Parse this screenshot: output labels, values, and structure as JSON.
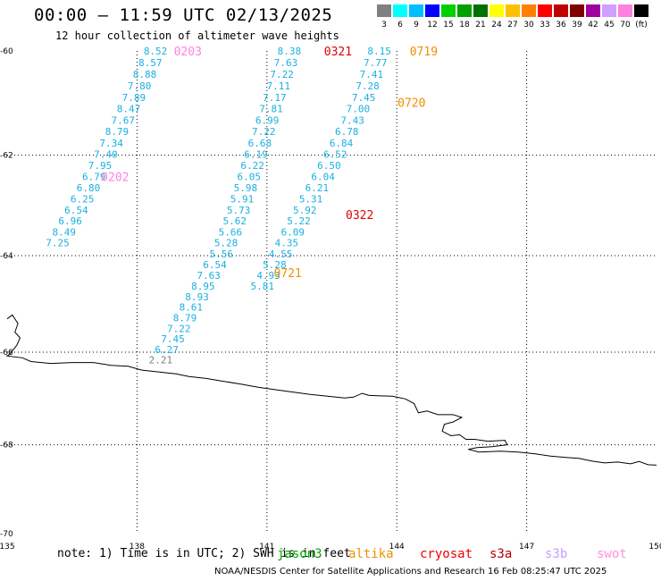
{
  "title": "00:00 — 11:59 UTC 02/13/2025",
  "subtitle": "12 hour collection of altimeter wave heights",
  "colorbar": {
    "colors": [
      "#808080",
      "#00ffff",
      "#00bfff",
      "#0000ff",
      "#00d000",
      "#00a000",
      "#007000",
      "#ffff00",
      "#ffc000",
      "#ff8000",
      "#ff0000",
      "#c00000",
      "#800000",
      "#a000a0",
      "#d0a0ff",
      "#ff80e0",
      "#000000"
    ],
    "labels": [
      "3",
      "6",
      "9",
      "12",
      "15",
      "18",
      "21",
      "24",
      "27",
      "30",
      "33",
      "36",
      "39",
      "42",
      "45",
      "70",
      "(ft)"
    ]
  },
  "chart_data": {
    "type": "scatter",
    "x_ticks": [
      "135",
      "138",
      "141",
      "144",
      "147",
      "150"
    ],
    "y_ticks": [
      "-60",
      "-62",
      "-64",
      "-66",
      "-68",
      "-70"
    ],
    "grid": "dotted",
    "points": [
      {
        "lon": 138.7,
        "lat": -60.0,
        "label": "8.52",
        "color": "#1ab0e0"
      },
      {
        "lon": 138.58,
        "lat": -60.22,
        "label": "8.57",
        "color": "#1ab0e0"
      },
      {
        "lon": 138.45,
        "lat": -60.44,
        "label": "8.88",
        "color": "#1ab0e0"
      },
      {
        "lon": 138.33,
        "lat": -60.66,
        "label": "7.80",
        "color": "#1ab0e0"
      },
      {
        "lon": 138.2,
        "lat": -60.88,
        "label": "7.89",
        "color": "#1ab0e0"
      },
      {
        "lon": 138.08,
        "lat": -61.1,
        "label": "8.47",
        "color": "#1ab0e0"
      },
      {
        "lon": 137.95,
        "lat": -61.32,
        "label": "7.67",
        "color": "#1ab0e0"
      },
      {
        "lon": 137.81,
        "lat": -61.54,
        "label": "8.79",
        "color": "#1ab0e0"
      },
      {
        "lon": 137.68,
        "lat": -61.76,
        "label": "7.34",
        "color": "#1ab0e0"
      },
      {
        "lon": 137.55,
        "lat": -61.98,
        "label": "7.40",
        "color": "#1ab0e0"
      },
      {
        "lon": 137.42,
        "lat": -62.2,
        "label": "7.95",
        "color": "#1ab0e0"
      },
      {
        "lon": 137.28,
        "lat": -62.42,
        "label": "6.79",
        "color": "#1ab0e0"
      },
      {
        "lon": 137.15,
        "lat": -62.64,
        "label": "6.80",
        "color": "#1ab0e0"
      },
      {
        "lon": 137.01,
        "lat": -62.86,
        "label": "6.25",
        "color": "#1ab0e0"
      },
      {
        "lon": 136.87,
        "lat": -63.08,
        "label": "6.54",
        "color": "#1ab0e0"
      },
      {
        "lon": 136.73,
        "lat": -63.3,
        "label": "6.96",
        "color": "#1ab0e0"
      },
      {
        "lon": 136.59,
        "lat": -63.52,
        "label": "8.49",
        "color": "#1ab0e0"
      },
      {
        "lon": 136.44,
        "lat": -63.74,
        "label": "7.25",
        "color": "#1ab0e0"
      },
      {
        "lon": 141.79,
        "lat": -60.0,
        "label": "8.38",
        "color": "#1ab0e0"
      },
      {
        "lon": 141.71,
        "lat": -60.22,
        "label": "7.63",
        "color": "#1ab0e0"
      },
      {
        "lon": 141.62,
        "lat": -60.44,
        "label": "7.22",
        "color": "#1ab0e0"
      },
      {
        "lon": 141.54,
        "lat": -60.66,
        "label": "7.11",
        "color": "#1ab0e0"
      },
      {
        "lon": 141.45,
        "lat": -60.88,
        "label": "7.17",
        "color": "#1ab0e0"
      },
      {
        "lon": 141.37,
        "lat": -61.1,
        "label": "7.81",
        "color": "#1ab0e0"
      },
      {
        "lon": 141.28,
        "lat": -61.32,
        "label": "6.99",
        "color": "#1ab0e0"
      },
      {
        "lon": 141.2,
        "lat": -61.54,
        "label": "7.22",
        "color": "#1ab0e0"
      },
      {
        "lon": 141.11,
        "lat": -61.76,
        "label": "6.68",
        "color": "#1ab0e0"
      },
      {
        "lon": 141.02,
        "lat": -61.98,
        "label": "6.19",
        "color": "#1ab0e0"
      },
      {
        "lon": 140.94,
        "lat": -62.2,
        "label": "6.22",
        "color": "#1ab0e0"
      },
      {
        "lon": 140.86,
        "lat": -62.42,
        "label": "6.05",
        "color": "#1ab0e0"
      },
      {
        "lon": 140.78,
        "lat": -62.64,
        "label": "5.98",
        "color": "#1ab0e0"
      },
      {
        "lon": 140.7,
        "lat": -62.86,
        "label": "5.91",
        "color": "#1ab0e0"
      },
      {
        "lon": 140.62,
        "lat": -63.08,
        "label": "5.73",
        "color": "#1ab0e0"
      },
      {
        "lon": 140.53,
        "lat": -63.3,
        "label": "5.62",
        "color": "#1ab0e0"
      },
      {
        "lon": 140.43,
        "lat": -63.52,
        "label": "5.66",
        "color": "#1ab0e0"
      },
      {
        "lon": 140.33,
        "lat": -63.74,
        "label": "5.28",
        "color": "#1ab0e0"
      },
      {
        "lon": 140.22,
        "lat": -63.96,
        "label": "5.56",
        "color": "#1ab0e0"
      },
      {
        "lon": 140.07,
        "lat": -64.18,
        "label": "6.54",
        "color": "#1ab0e0"
      },
      {
        "lon": 139.93,
        "lat": -64.4,
        "label": "7.63",
        "color": "#1ab0e0"
      },
      {
        "lon": 139.8,
        "lat": -64.62,
        "label": "8.95",
        "color": "#1ab0e0"
      },
      {
        "lon": 139.66,
        "lat": -64.84,
        "label": "8.93",
        "color": "#1ab0e0"
      },
      {
        "lon": 139.52,
        "lat": -65.06,
        "label": "8.61",
        "color": "#1ab0e0"
      },
      {
        "lon": 139.38,
        "lat": -65.28,
        "label": "8.79",
        "color": "#1ab0e0"
      },
      {
        "lon": 139.24,
        "lat": -65.5,
        "label": "7.22",
        "color": "#1ab0e0"
      },
      {
        "lon": 139.1,
        "lat": -65.72,
        "label": "7.45",
        "color": "#1ab0e0"
      },
      {
        "lon": 138.96,
        "lat": -65.94,
        "label": "6.27",
        "color": "#1ab0e0"
      },
      {
        "lon": 138.82,
        "lat": -66.16,
        "label": "2.21",
        "color": "#808080"
      },
      {
        "lon": 143.87,
        "lat": -60.0,
        "label": "8.15",
        "color": "#1ab0e0"
      },
      {
        "lon": 143.78,
        "lat": -60.22,
        "label": "7.77",
        "color": "#1ab0e0"
      },
      {
        "lon": 143.69,
        "lat": -60.44,
        "label": "7.41",
        "color": "#1ab0e0"
      },
      {
        "lon": 143.6,
        "lat": -60.66,
        "label": "7.28",
        "color": "#1ab0e0"
      },
      {
        "lon": 143.51,
        "lat": -60.88,
        "label": "7.45",
        "color": "#1ab0e0"
      },
      {
        "lon": 143.38,
        "lat": -61.1,
        "label": "7.00",
        "color": "#1ab0e0"
      },
      {
        "lon": 143.25,
        "lat": -61.32,
        "label": "7.43",
        "color": "#1ab0e0"
      },
      {
        "lon": 143.12,
        "lat": -61.54,
        "label": "6.78",
        "color": "#1ab0e0"
      },
      {
        "lon": 142.99,
        "lat": -61.76,
        "label": "6.84",
        "color": "#1ab0e0"
      },
      {
        "lon": 142.85,
        "lat": -61.98,
        "label": "6.52",
        "color": "#1ab0e0"
      },
      {
        "lon": 142.71,
        "lat": -62.2,
        "label": "6.50",
        "color": "#1ab0e0"
      },
      {
        "lon": 142.57,
        "lat": -62.42,
        "label": "6.04",
        "color": "#1ab0e0"
      },
      {
        "lon": 142.43,
        "lat": -62.64,
        "label": "6.21",
        "color": "#1ab0e0"
      },
      {
        "lon": 142.29,
        "lat": -62.86,
        "label": "5.31",
        "color": "#1ab0e0"
      },
      {
        "lon": 142.15,
        "lat": -63.08,
        "label": "5.92",
        "color": "#1ab0e0"
      },
      {
        "lon": 142.01,
        "lat": -63.3,
        "label": "5.22",
        "color": "#1ab0e0"
      },
      {
        "lon": 141.87,
        "lat": -63.52,
        "label": "6.09",
        "color": "#1ab0e0"
      },
      {
        "lon": 141.73,
        "lat": -63.74,
        "label": "4.35",
        "color": "#1ab0e0"
      },
      {
        "lon": 141.59,
        "lat": -63.96,
        "label": "4.55",
        "color": "#1ab0e0"
      },
      {
        "lon": 141.45,
        "lat": -64.18,
        "label": "5.28",
        "color": "#1ab0e0"
      },
      {
        "lon": 141.31,
        "lat": -64.4,
        "label": "4.93",
        "color": "#1ab0e0"
      },
      {
        "lon": 141.17,
        "lat": -64.62,
        "label": "5.81",
        "color": "#1ab0e0"
      }
    ],
    "time_labels": [
      {
        "lon": 138.85,
        "lat": -60.0,
        "text": "0203",
        "color": "#ff80e0"
      },
      {
        "lon": 137.17,
        "lat": -62.42,
        "text": "0202",
        "color": "#ff80e0"
      },
      {
        "lon": 142.32,
        "lat": -60.0,
        "text": "0321",
        "color": "#e00000"
      },
      {
        "lon": 142.82,
        "lat": -63.17,
        "text": "0322",
        "color": "#e00000"
      },
      {
        "lon": 144.3,
        "lat": -60.0,
        "text": "0719",
        "color": "#f09000"
      },
      {
        "lon": 144.02,
        "lat": -60.98,
        "text": "0720",
        "color": "#f09000"
      },
      {
        "lon": 141.16,
        "lat": -64.35,
        "text": "0721",
        "color": "#f09000"
      }
    ],
    "coastline": [
      [
        135.0,
        -65.3
      ],
      [
        135.12,
        -65.22
      ],
      [
        135.25,
        -65.4
      ],
      [
        135.18,
        -65.58
      ],
      [
        135.3,
        -65.7
      ],
      [
        135.22,
        -65.86
      ],
      [
        135.05,
        -66.05
      ],
      [
        135.0,
        -66.08
      ],
      [
        135.35,
        -66.12
      ],
      [
        135.55,
        -66.2
      ],
      [
        136.0,
        -66.24
      ],
      [
        136.5,
        -66.22
      ],
      [
        137.0,
        -66.22
      ],
      [
        137.4,
        -66.28
      ],
      [
        137.8,
        -66.3
      ],
      [
        138.1,
        -66.38
      ],
      [
        138.5,
        -66.42
      ],
      [
        138.9,
        -66.46
      ],
      [
        139.2,
        -66.52
      ],
      [
        139.6,
        -66.56
      ],
      [
        140.0,
        -66.62
      ],
      [
        140.4,
        -66.68
      ],
      [
        140.8,
        -66.75
      ],
      [
        141.2,
        -66.8
      ],
      [
        141.6,
        -66.85
      ],
      [
        142.0,
        -66.9
      ],
      [
        142.5,
        -66.95
      ],
      [
        142.8,
        -66.98
      ],
      [
        143.0,
        -66.96
      ],
      [
        143.2,
        -66.88
      ],
      [
        143.35,
        -66.92
      ],
      [
        143.55,
        -66.93
      ],
      [
        143.9,
        -66.94
      ],
      [
        144.2,
        -67.0
      ],
      [
        144.4,
        -67.1
      ],
      [
        144.5,
        -67.3
      ],
      [
        144.7,
        -67.26
      ],
      [
        144.95,
        -67.34
      ],
      [
        145.3,
        -67.34
      ],
      [
        145.5,
        -67.4
      ],
      [
        145.3,
        -67.5
      ],
      [
        145.1,
        -67.55
      ],
      [
        145.05,
        -67.7
      ],
      [
        145.25,
        -67.8
      ],
      [
        145.45,
        -67.78
      ],
      [
        145.6,
        -67.88
      ],
      [
        145.8,
        -67.88
      ],
      [
        146.1,
        -67.92
      ],
      [
        146.5,
        -67.9
      ],
      [
        146.55,
        -68.0
      ],
      [
        146.2,
        -68.04
      ],
      [
        145.85,
        -68.06
      ],
      [
        145.65,
        -68.1
      ],
      [
        145.9,
        -68.16
      ],
      [
        146.4,
        -68.14
      ],
      [
        146.8,
        -68.16
      ],
      [
        147.2,
        -68.2
      ],
      [
        147.55,
        -68.25
      ],
      [
        147.9,
        -68.28
      ],
      [
        148.2,
        -68.3
      ],
      [
        148.5,
        -68.36
      ],
      [
        148.8,
        -68.4
      ],
      [
        149.1,
        -68.38
      ],
      [
        149.4,
        -68.42
      ],
      [
        149.6,
        -68.37
      ],
      [
        149.8,
        -68.44
      ],
      [
        150.0,
        -68.45
      ]
    ]
  },
  "footnote": "note:  1) Time is in UTC; 2) SWH is in feet",
  "satellites": [
    {
      "name": "jason3",
      "color": "#00aa00"
    },
    {
      "name": "altika",
      "color": "#f09000"
    },
    {
      "name": "cryosat",
      "color": "#ee0000"
    },
    {
      "name": "s3a",
      "color": "#b00000"
    },
    {
      "name": "s3b",
      "color": "#c0a0ff"
    },
    {
      "name": "swot",
      "color": "#ff90e0"
    }
  ],
  "credit": "NOAA/NESDIS Center for Satellite Applications and Research    16 Feb 08:25:47 UTC 2025"
}
